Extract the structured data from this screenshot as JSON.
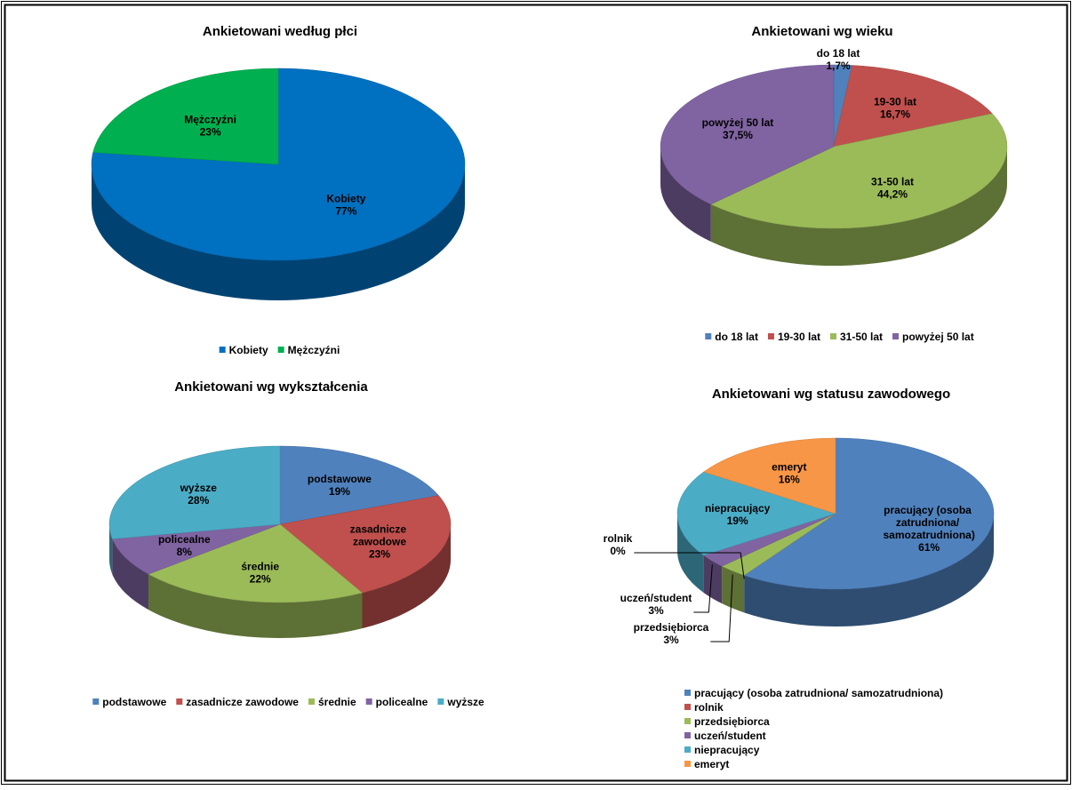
{
  "chart_data": [
    {
      "type": "pie",
      "title": "Ankietowani według płci",
      "categories": [
        "Kobiety",
        "Mężczyźni"
      ],
      "values": [
        77,
        23
      ],
      "value_labels": [
        "77%",
        "23%"
      ],
      "colors": [
        "#0070c0",
        "#00b050"
      ],
      "legend": "bottom"
    },
    {
      "type": "pie",
      "title": "Ankietowani wg wieku",
      "categories": [
        "do 18 lat",
        "19-30 lat",
        "31-50 lat",
        "powyżej 50 lat"
      ],
      "values": [
        1.7,
        16.7,
        44.2,
        37.5
      ],
      "value_labels": [
        "1,7%",
        "16,7%",
        "44,2%",
        "37,5%"
      ],
      "colors": [
        "#4f81bd",
        "#c0504d",
        "#9bbb59",
        "#8064a2"
      ],
      "legend": "bottom"
    },
    {
      "type": "pie",
      "title": "Ankietowani wg wykształcenia",
      "categories": [
        "podstawowe",
        "zasadnicze zawodowe",
        "średnie",
        "policealne",
        "wyższe"
      ],
      "values": [
        19,
        23,
        22,
        8,
        28
      ],
      "value_labels": [
        "19%",
        "23%",
        "22%",
        "8%",
        "28%"
      ],
      "colors": [
        "#4f81bd",
        "#c0504d",
        "#9bbb59",
        "#8064a2",
        "#4bacc6"
      ],
      "legend": "bottom"
    },
    {
      "type": "pie",
      "title": "Ankietowani wg statusu zawodowego",
      "categories": [
        "pracujący (osoba zatrudniona/ samozatrudniona)",
        "rolnik",
        "przedsiębiorca",
        "uczeń/student",
        "niepracujący",
        "emeryt"
      ],
      "values": [
        61,
        0,
        3,
        3,
        19,
        16
      ],
      "value_labels": [
        "61%",
        "0%",
        "3%",
        "3%",
        "19%",
        "16%"
      ],
      "colors": [
        "#4f81bd",
        "#c0504d",
        "#9bbb59",
        "#8064a2",
        "#4bacc6",
        "#f79646"
      ],
      "legend": "bottom"
    }
  ]
}
